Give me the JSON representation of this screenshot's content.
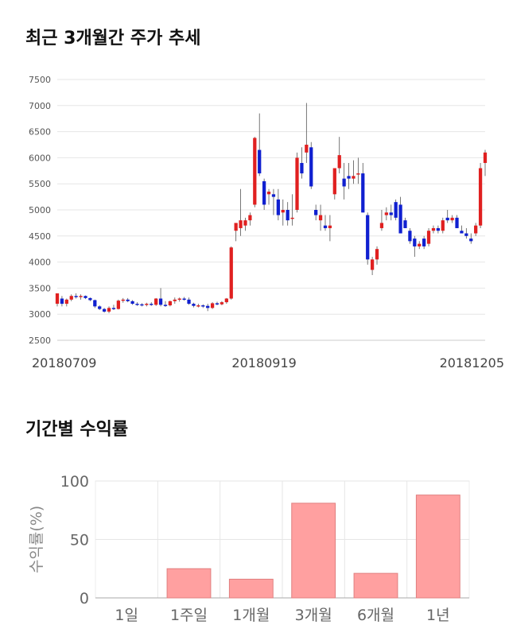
{
  "sections": {
    "price_title": "최근 3개월간 주가 추세",
    "returns_title": "기간별 수익률"
  },
  "chart_data": [
    {
      "type": "candlestick",
      "title": "최근 3개월간 주가 추세",
      "ylim": [
        2500,
        7500
      ],
      "yticks": [
        2500,
        3000,
        3500,
        4000,
        4500,
        5000,
        5500,
        6000,
        6500,
        7000,
        7500
      ],
      "x_tick_labels": [
        {
          "label": "20180709",
          "index": 0
        },
        {
          "label": "20180919",
          "index": 44
        },
        {
          "label": "20181205",
          "index": 91
        }
      ],
      "grid": true,
      "colors": {
        "up": "#e02020",
        "down": "#1020d0",
        "wick": "#555555"
      },
      "candles": [
        [
          3200,
          3400,
          3150,
          3400
        ],
        [
          3300,
          3350,
          3150,
          3200
        ],
        [
          3200,
          3300,
          3150,
          3280
        ],
        [
          3280,
          3380,
          3250,
          3350
        ],
        [
          3350,
          3400,
          3300,
          3330
        ],
        [
          3330,
          3380,
          3280,
          3350
        ],
        [
          3350,
          3360,
          3290,
          3310
        ],
        [
          3310,
          3320,
          3250,
          3270
        ],
        [
          3270,
          3280,
          3120,
          3150
        ],
        [
          3150,
          3170,
          3080,
          3100
        ],
        [
          3100,
          3120,
          3030,
          3050
        ],
        [
          3050,
          3150,
          3020,
          3120
        ],
        [
          3120,
          3180,
          3080,
          3100
        ],
        [
          3100,
          3280,
          3090,
          3260
        ],
        [
          3260,
          3310,
          3220,
          3280
        ],
        [
          3280,
          3310,
          3230,
          3250
        ],
        [
          3250,
          3270,
          3180,
          3200
        ],
        [
          3200,
          3230,
          3160,
          3190
        ],
        [
          3190,
          3210,
          3150,
          3180
        ],
        [
          3180,
          3220,
          3150,
          3200
        ],
        [
          3200,
          3230,
          3160,
          3180
        ],
        [
          3180,
          3310,
          3160,
          3300
        ],
        [
          3300,
          3500,
          3150,
          3180
        ],
        [
          3180,
          3250,
          3140,
          3170
        ],
        [
          3170,
          3260,
          3150,
          3250
        ],
        [
          3250,
          3320,
          3200,
          3280
        ],
        [
          3280,
          3320,
          3240,
          3300
        ],
        [
          3300,
          3330,
          3260,
          3280
        ],
        [
          3280,
          3320,
          3180,
          3200
        ],
        [
          3200,
          3220,
          3130,
          3160
        ],
        [
          3160,
          3200,
          3130,
          3170
        ],
        [
          3170,
          3190,
          3120,
          3160
        ],
        [
          3160,
          3200,
          3060,
          3120
        ],
        [
          3120,
          3230,
          3100,
          3210
        ],
        [
          3210,
          3240,
          3170,
          3190
        ],
        [
          3190,
          3250,
          3170,
          3230
        ],
        [
          3230,
          3310,
          3200,
          3300
        ],
        [
          3300,
          4300,
          3280,
          4280
        ],
        [
          4600,
          4700,
          4400,
          4750
        ],
        [
          4650,
          5400,
          4500,
          4800
        ],
        [
          4700,
          4850,
          4600,
          4800
        ],
        [
          4800,
          4950,
          4700,
          4900
        ],
        [
          5100,
          6400,
          5050,
          6380
        ],
        [
          6150,
          6850,
          5650,
          5700
        ],
        [
          5550,
          5600,
          5000,
          5100
        ],
        [
          5300,
          5400,
          5100,
          5350
        ],
        [
          5300,
          5400,
          4900,
          5250
        ],
        [
          5200,
          5400,
          4800,
          4900
        ],
        [
          4950,
          5200,
          4700,
          5000
        ],
        [
          5000,
          5150,
          4700,
          4800
        ],
        [
          4850,
          5300,
          4700,
          4850
        ],
        [
          5000,
          6100,
          4950,
          6000
        ],
        [
          5900,
          6200,
          5600,
          5700
        ],
        [
          6100,
          7050,
          5900,
          6250
        ],
        [
          6200,
          6300,
          5400,
          5450
        ],
        [
          5000,
          5100,
          4800,
          4900
        ],
        [
          4800,
          5100,
          4600,
          4900
        ],
        [
          4700,
          4900,
          4600,
          4650
        ],
        [
          4650,
          4900,
          4400,
          4700
        ],
        [
          5300,
          5800,
          5200,
          5800
        ],
        [
          5800,
          6400,
          5700,
          6050
        ],
        [
          5600,
          5900,
          5200,
          5450
        ],
        [
          5650,
          5900,
          5400,
          5600
        ],
        [
          5600,
          5950,
          5500,
          5650
        ],
        [
          5700,
          6000,
          5500,
          5700
        ],
        [
          5700,
          5900,
          4950,
          4950
        ],
        [
          4900,
          4950,
          3950,
          4050
        ],
        [
          3850,
          4100,
          3750,
          4050
        ],
        [
          4050,
          4300,
          3950,
          4250
        ],
        [
          4650,
          5000,
          4600,
          4750
        ],
        [
          4900,
          5050,
          4800,
          4950
        ],
        [
          4950,
          5100,
          4800,
          4900
        ],
        [
          5150,
          5200,
          4800,
          4850
        ],
        [
          5100,
          5250,
          4600,
          4550
        ],
        [
          4800,
          4850,
          4650,
          4650
        ],
        [
          4600,
          4650,
          4350,
          4400
        ],
        [
          4450,
          4500,
          4100,
          4300
        ],
        [
          4300,
          4400,
          4250,
          4350
        ],
        [
          4450,
          4500,
          4250,
          4300
        ],
        [
          4350,
          4650,
          4300,
          4600
        ],
        [
          4600,
          4700,
          4550,
          4650
        ],
        [
          4650,
          4700,
          4550,
          4600
        ],
        [
          4600,
          4850,
          4550,
          4800
        ],
        [
          4850,
          5000,
          4750,
          4800
        ],
        [
          4800,
          4900,
          4750,
          4850
        ],
        [
          4850,
          4900,
          4650,
          4650
        ],
        [
          4600,
          4700,
          4550,
          4550
        ],
        [
          4550,
          4650,
          4450,
          4500
        ],
        [
          4450,
          4550,
          4350,
          4400
        ],
        [
          4550,
          4750,
          4500,
          4700
        ],
        [
          4700,
          5900,
          4650,
          5800
        ],
        [
          5900,
          6150,
          5650,
          6100
        ]
      ]
    },
    {
      "type": "bar",
      "title": "기간별 수익률",
      "ylabel": "수익률(%)",
      "categories": [
        "1일",
        "1주일",
        "1개월",
        "3개월",
        "6개월",
        "1년"
      ],
      "values": [
        0,
        25,
        16,
        81,
        21,
        88
      ],
      "ylim": [
        0,
        100
      ],
      "yticks": [
        0,
        50,
        100
      ],
      "grid": true,
      "colors": {
        "bar": "#ffa0a0",
        "bar_edge": "#e08080"
      }
    }
  ]
}
